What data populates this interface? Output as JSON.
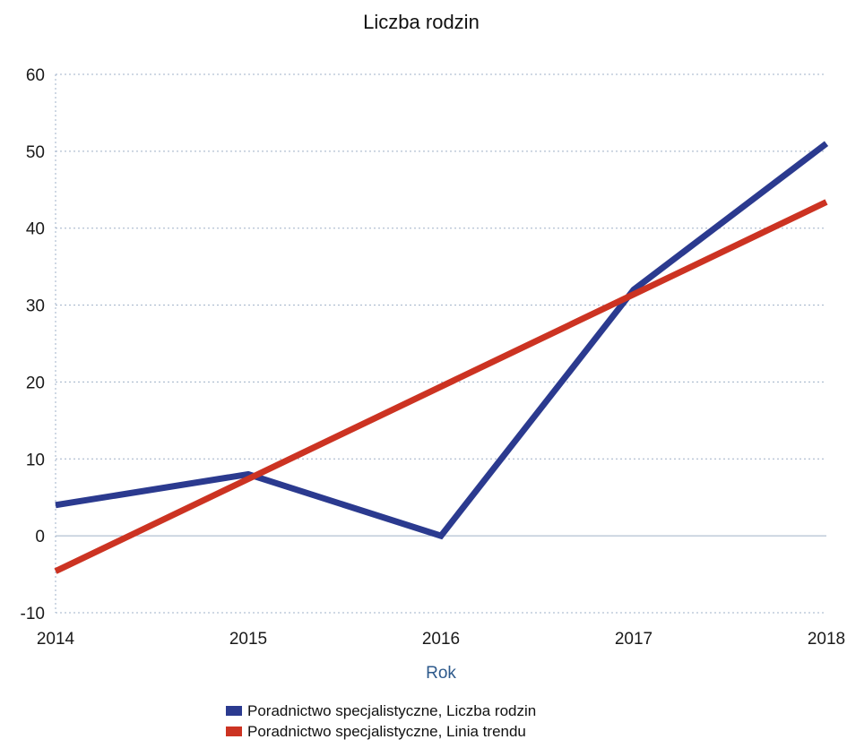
{
  "chart_data": {
    "type": "line",
    "title": "Liczba rodzin",
    "xlabel": "Rok",
    "ylabel": "",
    "x": [
      "2014",
      "2015",
      "2016",
      "2017",
      "2018"
    ],
    "ylim": [
      -10,
      60
    ],
    "yticks": [
      "-10",
      "0",
      "10",
      "20",
      "30",
      "40",
      "50",
      "60"
    ],
    "grid": true,
    "legend_position": "bottom-center",
    "series": [
      {
        "name": "Poradnictwo specjalistyczne, Liczba rodzin",
        "values": [
          4,
          8,
          0,
          32,
          51
        ],
        "color": "#2b3a8f"
      },
      {
        "name": "Poradnictwo specjalistyczne, Linia trendu",
        "values": [
          -4.6,
          7.4,
          19.4,
          31.4,
          43.4
        ],
        "color": "#cc3322"
      }
    ]
  }
}
